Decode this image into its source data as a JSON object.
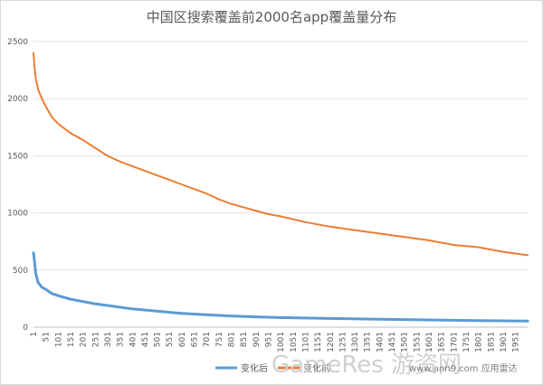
{
  "chart_data": {
    "type": "line",
    "title": "中国区搜索覆盖前2000名app覆盖量分布",
    "xlabel": "",
    "ylabel": "",
    "ylim": [
      0,
      2500
    ],
    "yticks": [
      "0",
      "500",
      "1000",
      "1500",
      "2000",
      "2500"
    ],
    "xlim": [
      1,
      2000
    ],
    "xticks": [
      "1",
      "51",
      "101",
      "151",
      "201",
      "251",
      "301",
      "351",
      "401",
      "451",
      "501",
      "551",
      "601",
      "651",
      "701",
      "751",
      "801",
      "851",
      "901",
      "951",
      "1001",
      "1051",
      "1101",
      "1151",
      "1201",
      "1251",
      "1301",
      "1351",
      "1401",
      "1451",
      "1501",
      "1551",
      "1601",
      "1651",
      "1701",
      "1751",
      "1801",
      "1851",
      "1901",
      "1951"
    ],
    "grid": true,
    "legend_position": "bottom",
    "series": [
      {
        "name": "变化后",
        "color": "#5b9bd5",
        "x": [
          1,
          5,
          10,
          20,
          35,
          51,
          75,
          101,
          150,
          200,
          250,
          300,
          400,
          500,
          600,
          700,
          800,
          900,
          1000,
          1200,
          1400,
          1600,
          1800,
          2000
        ],
        "values": [
          650,
          580,
          470,
          390,
          350,
          330,
          295,
          275,
          245,
          225,
          205,
          190,
          160,
          140,
          120,
          108,
          98,
          90,
          84,
          76,
          70,
          63,
          58,
          53
        ]
      },
      {
        "name": "变化前",
        "color": "#ed7d31",
        "x": [
          1,
          5,
          10,
          20,
          35,
          51,
          75,
          101,
          150,
          200,
          250,
          300,
          350,
          400,
          450,
          500,
          550,
          600,
          650,
          700,
          750,
          800,
          850,
          900,
          950,
          1000,
          1100,
          1200,
          1300,
          1400,
          1500,
          1600,
          1700,
          1800,
          1900,
          2000
        ],
        "values": [
          2400,
          2280,
          2180,
          2080,
          2000,
          1930,
          1840,
          1780,
          1700,
          1640,
          1570,
          1500,
          1450,
          1410,
          1370,
          1330,
          1290,
          1250,
          1210,
          1170,
          1120,
          1080,
          1050,
          1020,
          990,
          970,
          920,
          880,
          850,
          820,
          790,
          760,
          720,
          700,
          660,
          630
        ]
      }
    ]
  },
  "watermark": {
    "brand": "GameRes",
    "brand_suffix": "游资网",
    "url": "www.ann9.com 应用雷达"
  }
}
